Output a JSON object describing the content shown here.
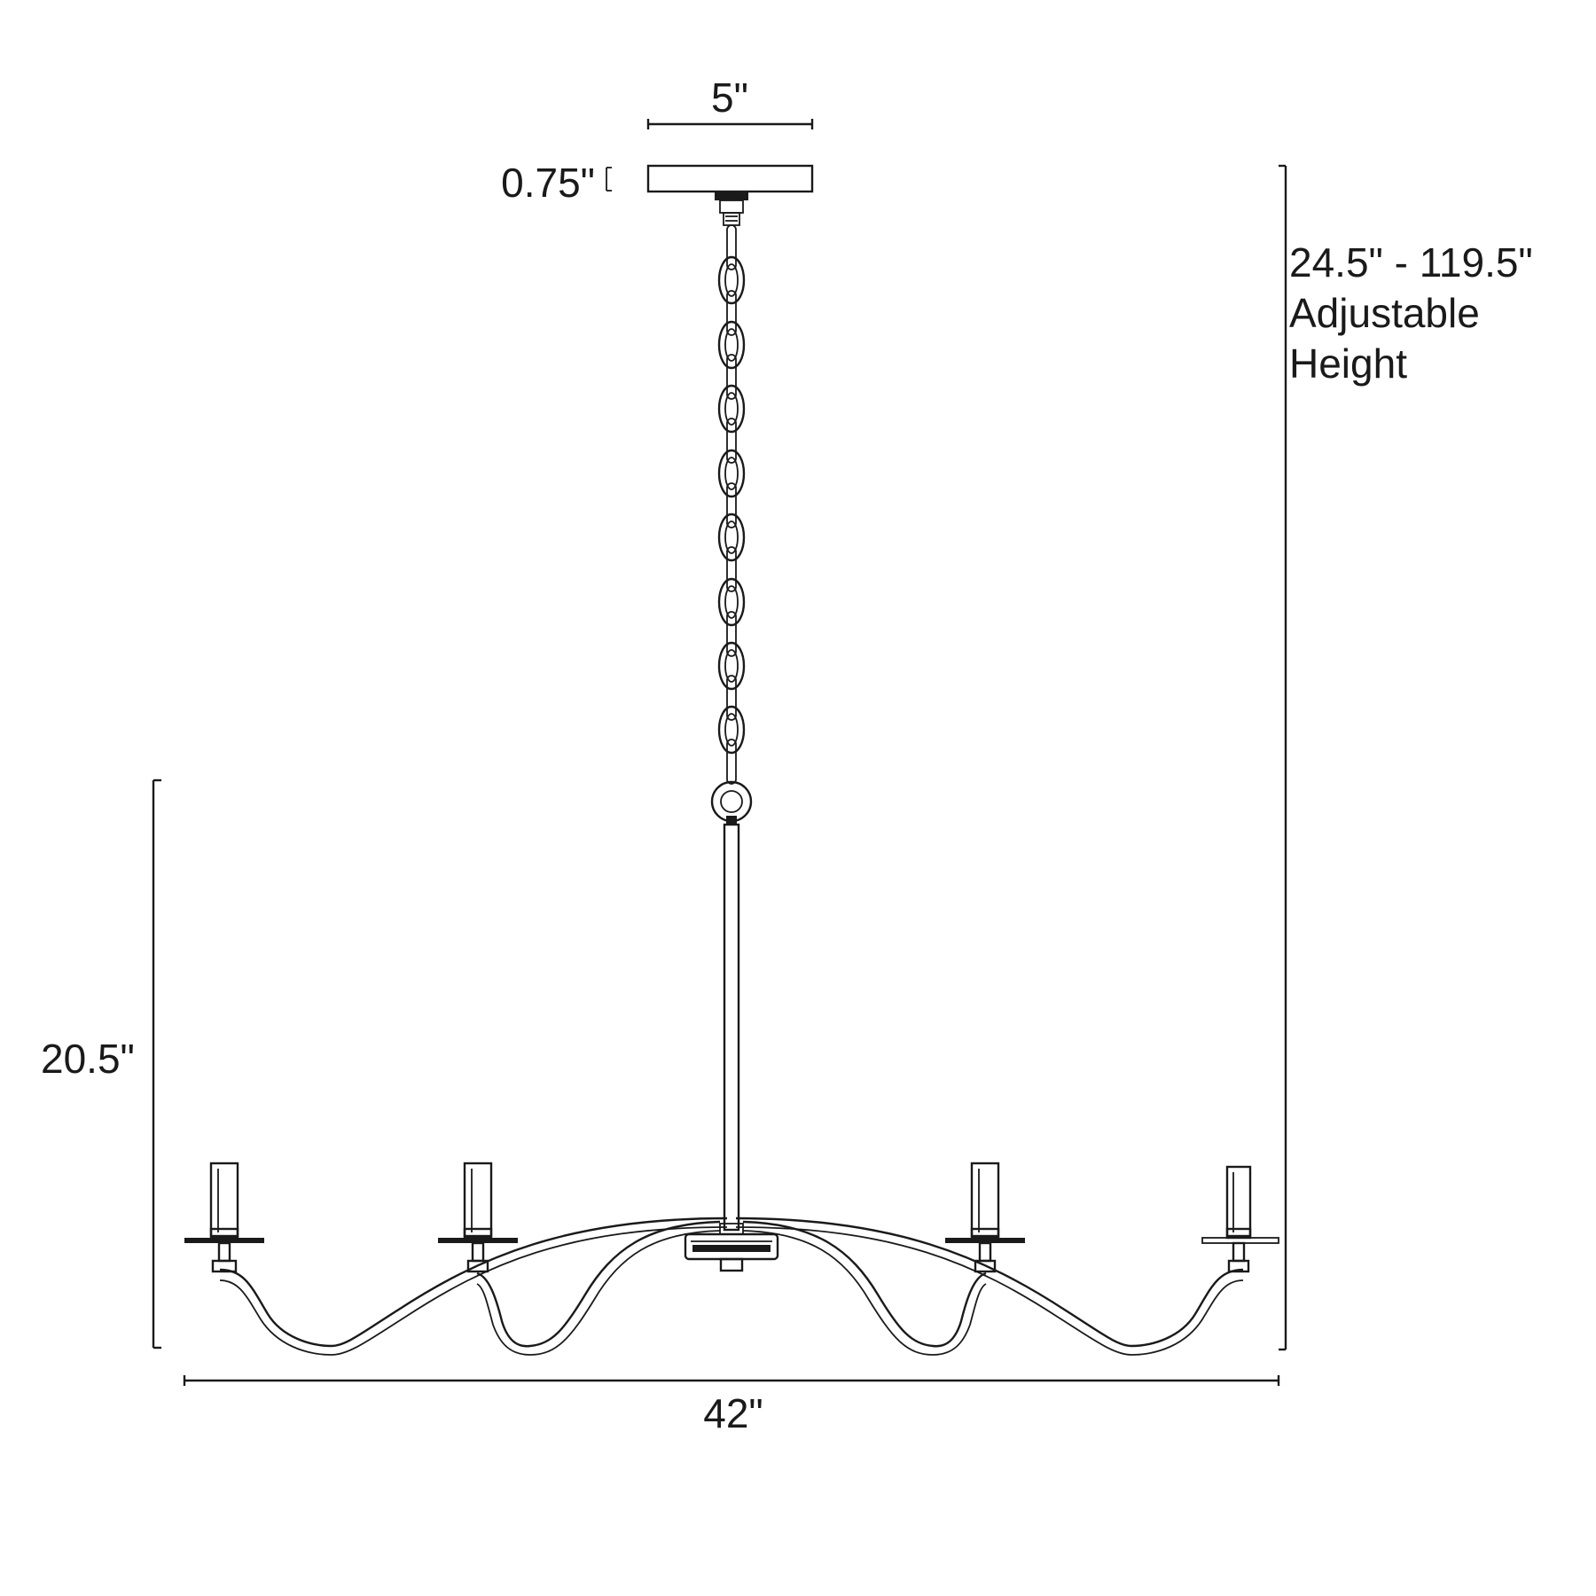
{
  "dimensions": {
    "canopy_width": "5\"",
    "canopy_depth": "0.75\"",
    "overall_height_range": "24.5\" - 119.5\"",
    "overall_height_note_line1": "Adjustable",
    "overall_height_note_line2": "Height",
    "body_height": "20.5\"",
    "overall_width": "42\""
  }
}
